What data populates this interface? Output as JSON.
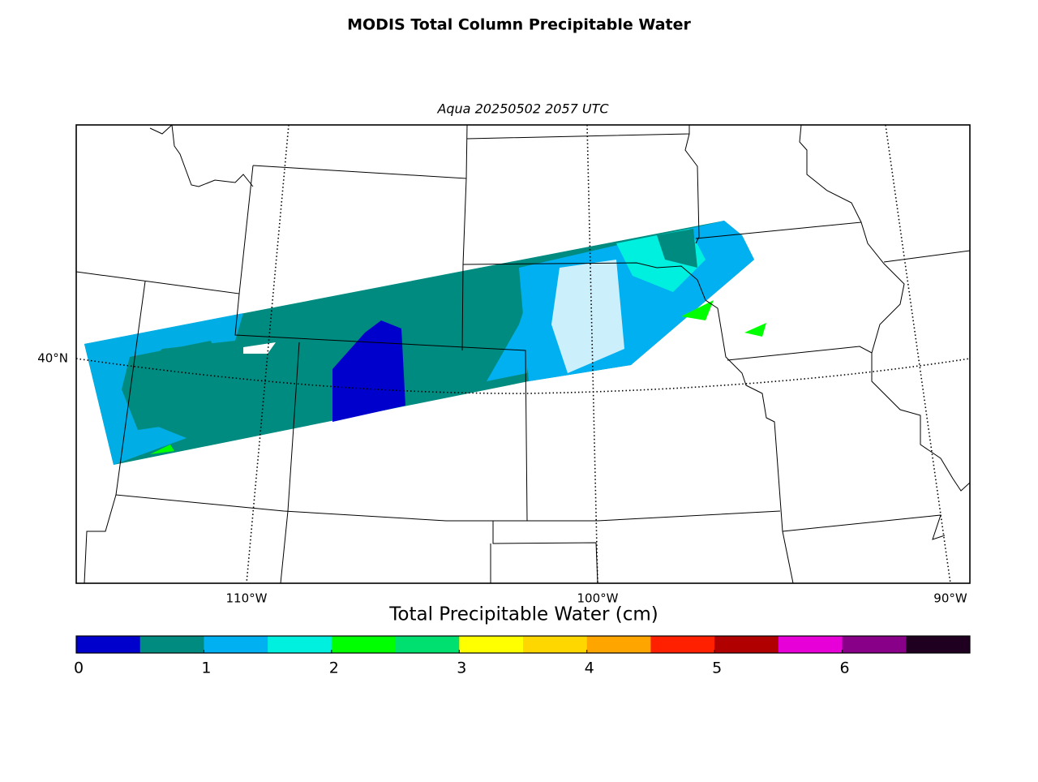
{
  "title": "MODIS Total Column Precipitable Water",
  "subtitle": "Aqua 20250502 2057 UTC",
  "map": {
    "lat_labels": [
      "40°N"
    ],
    "lon_labels": [
      "110°W",
      "100°W",
      "90°W"
    ]
  },
  "colorbar": {
    "label": "Total Precipitable Water (cm)",
    "range": [
      0,
      7
    ],
    "ticks": [
      0,
      1,
      2,
      3,
      4,
      5,
      6
    ],
    "colors": [
      "#0000cc",
      "#008b80",
      "#00b0f0",
      "#00f0e0",
      "#00ff00",
      "#00e070",
      "#ffff00",
      "#ffd700",
      "#ffa500",
      "#ff2000",
      "#b00000",
      "#e800d8",
      "#880088",
      "#200020"
    ]
  }
}
